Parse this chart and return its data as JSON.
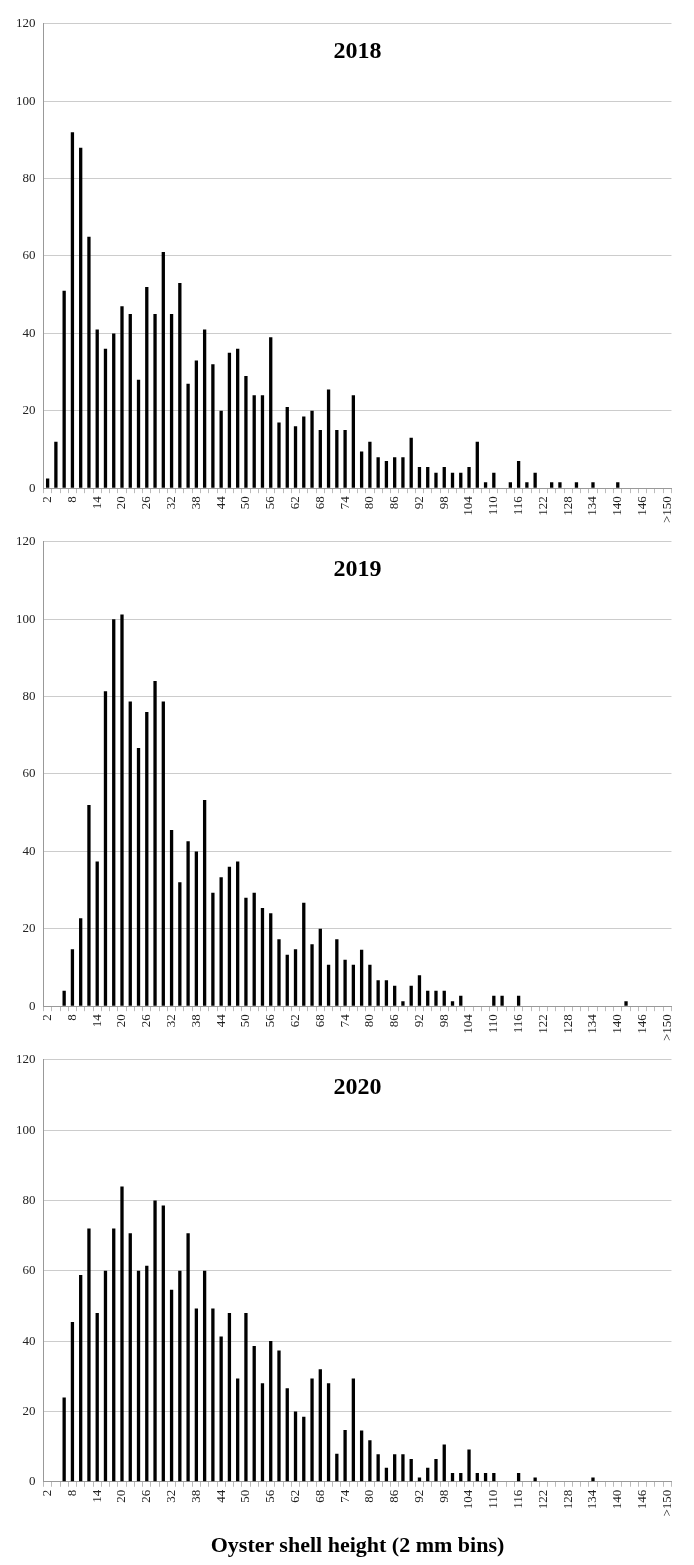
{
  "chart_data": [
    {
      "type": "bar",
      "title": "2018",
      "categories": [
        "2",
        null,
        null,
        "8",
        null,
        null,
        "14",
        null,
        null,
        "20",
        null,
        null,
        "26",
        null,
        null,
        "32",
        null,
        null,
        "38",
        null,
        null,
        "44",
        null,
        null,
        "50",
        null,
        null,
        "56",
        null,
        null,
        "62",
        null,
        null,
        "68",
        null,
        null,
        "74",
        null,
        null,
        "80",
        null,
        null,
        "86",
        null,
        null,
        "92",
        null,
        null,
        "98",
        null,
        null,
        "104",
        null,
        null,
        "110",
        null,
        null,
        "116",
        null,
        null,
        "122",
        null,
        null,
        "128",
        null,
        null,
        "134",
        null,
        null,
        "140",
        null,
        null,
        "146",
        null,
        null,
        ">150"
      ],
      "values": [
        2.5,
        12,
        51,
        92,
        88,
        65,
        41,
        36,
        40,
        47,
        45,
        28,
        52,
        45,
        61,
        45,
        53,
        27,
        33,
        41,
        32,
        20,
        35,
        36,
        29,
        24,
        24,
        39,
        17,
        21,
        16,
        18.5,
        20,
        15,
        25.5,
        15,
        15,
        24,
        9.5,
        12,
        8,
        7,
        8,
        8,
        13,
        5.5,
        5.5,
        4,
        5.5,
        4,
        4,
        5.5,
        12,
        1.5,
        4,
        0,
        1.5,
        7,
        1.5,
        4,
        0,
        1.5,
        1.5,
        0,
        1.5,
        0,
        1.5,
        0,
        0,
        1.5,
        0,
        0,
        0,
        0,
        0,
        0
      ],
      "color": "#000000",
      "ylim": [
        0,
        120
      ],
      "yticks": [
        0,
        20,
        40,
        60,
        80,
        100,
        120
      ],
      "grid": "y"
    },
    {
      "type": "bar",
      "title": "2019",
      "categories": [
        "2",
        null,
        null,
        "8",
        null,
        null,
        "14",
        null,
        null,
        "20",
        null,
        null,
        "26",
        null,
        null,
        "32",
        null,
        null,
        "38",
        null,
        null,
        "44",
        null,
        null,
        "50",
        null,
        null,
        "56",
        null,
        null,
        "62",
        null,
        null,
        "68",
        null,
        null,
        "74",
        null,
        null,
        "80",
        null,
        null,
        "86",
        null,
        null,
        "92",
        null,
        null,
        "98",
        null,
        null,
        "104",
        null,
        null,
        "110",
        null,
        null,
        "116",
        null,
        null,
        "122",
        null,
        null,
        "128",
        null,
        null,
        "134",
        null,
        null,
        "140",
        null,
        null,
        "146",
        null,
        null,
        ">150"
      ],
      "values": [
        0,
        0,
        4,
        14.7,
        22.7,
        52,
        37.4,
        81.4,
        100,
        101.2,
        78.7,
        66.7,
        76,
        84,
        78.7,
        45.5,
        32,
        42.6,
        40,
        53.3,
        29.3,
        33.3,
        36,
        37.4,
        28,
        29.3,
        25.4,
        24,
        17.3,
        13.3,
        14.7,
        26.7,
        16,
        20,
        10.7,
        17.3,
        12,
        10.7,
        14.6,
        10.7,
        6.7,
        6.7,
        5.3,
        1.3,
        5.3,
        8,
        4,
        4,
        4,
        1.3,
        2.7,
        0,
        0,
        0,
        2.7,
        2.7,
        0,
        2.7,
        0,
        0,
        0,
        0,
        0,
        0,
        0,
        0,
        0,
        0,
        0,
        0,
        1.3,
        0,
        0,
        0,
        0,
        0
      ],
      "color": "#000000",
      "ylim": [
        0,
        120
      ],
      "yticks": [
        0,
        20,
        40,
        60,
        80,
        100,
        120
      ],
      "grid": "y"
    },
    {
      "type": "bar",
      "title": "2020",
      "xlabel": "Oyster shell height (2 mm bins)",
      "categories": [
        "2",
        null,
        null,
        "8",
        null,
        null,
        "14",
        null,
        null,
        "20",
        null,
        null,
        "26",
        null,
        null,
        "32",
        null,
        null,
        "38",
        null,
        null,
        "44",
        null,
        null,
        "50",
        null,
        null,
        "56",
        null,
        null,
        "62",
        null,
        null,
        "68",
        null,
        null,
        "74",
        null,
        null,
        "80",
        null,
        null,
        "86",
        null,
        null,
        "92",
        null,
        null,
        "98",
        null,
        null,
        "104",
        null,
        null,
        "110",
        null,
        null,
        "116",
        null,
        null,
        "122",
        null,
        null,
        "128",
        null,
        null,
        "134",
        null,
        null,
        "140",
        null,
        null,
        "146",
        null,
        null,
        ">150"
      ],
      "values": [
        0,
        0,
        24,
        45.4,
        58.8,
        72,
        48,
        60,
        72,
        84,
        70.7,
        60,
        61.4,
        80,
        78.6,
        54.6,
        60,
        70.7,
        49.3,
        60,
        49.3,
        41.3,
        48,
        29.4,
        48,
        38.6,
        28,
        40,
        37.3,
        26.6,
        20,
        18.5,
        29.4,
        32,
        28,
        8,
        14.7,
        29.4,
        14.6,
        11.8,
        7.8,
        4,
        7.8,
        7.8,
        6.5,
        1.2,
        4,
        6.5,
        10.6,
        2.5,
        2.5,
        9.2,
        2.5,
        2.5,
        2.5,
        0,
        0,
        2.5,
        0,
        1.2,
        0,
        0,
        0,
        0,
        0,
        0,
        1.2,
        0,
        0,
        0,
        0,
        0,
        0,
        0,
        0,
        0
      ],
      "color": "#000000",
      "ylim": [
        0,
        120
      ],
      "yticks": [
        0,
        20,
        40,
        60,
        80,
        100,
        120
      ],
      "grid": "y"
    }
  ]
}
